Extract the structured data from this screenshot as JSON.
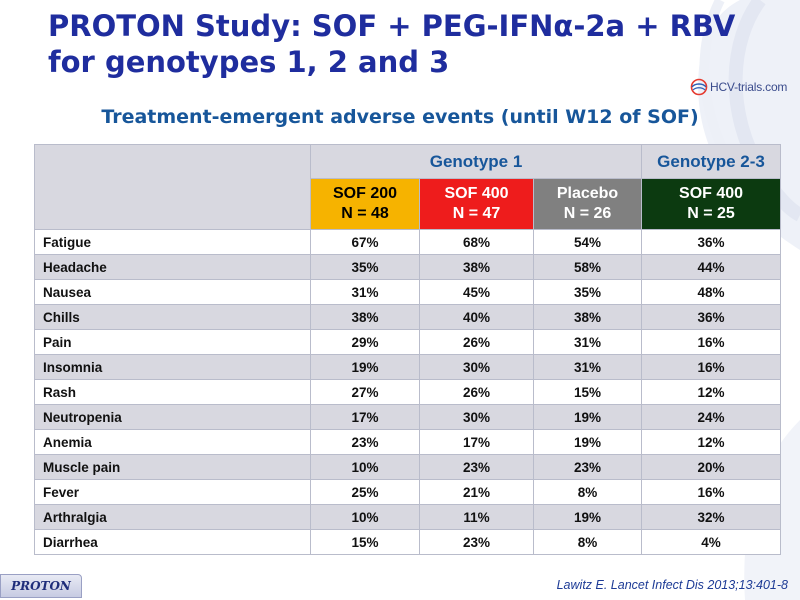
{
  "header": {
    "title_line1": "PROTON Study: SOF + PEG-IFNα-2a + RBV",
    "title_line2": "for genotypes 1, 2 and 3",
    "logo_text": "HCV-trials.com"
  },
  "subtitle": "Treatment-emergent adverse events (until W12 of SOF)",
  "table": {
    "groups": [
      {
        "label": "Genotype 1"
      },
      {
        "label": "Genotype 2-3"
      }
    ],
    "arms": [
      {
        "name": "SOF 200",
        "n": "N = 48",
        "color": "#f6b300"
      },
      {
        "name": "SOF 400",
        "n": "N = 47",
        "color": "#ee1c1c"
      },
      {
        "name": "Placebo",
        "n": "N = 26",
        "color": "#808080"
      },
      {
        "name": "SOF 400",
        "n": "N = 25",
        "color": "#0c3a10"
      }
    ],
    "rows": [
      {
        "event": "Fatigue",
        "values": [
          "67%",
          "68%",
          "54%",
          "36%"
        ]
      },
      {
        "event": "Headache",
        "values": [
          "35%",
          "38%",
          "58%",
          "44%"
        ]
      },
      {
        "event": "Nausea",
        "values": [
          "31%",
          "45%",
          "35%",
          "48%"
        ]
      },
      {
        "event": "Chills",
        "values": [
          "38%",
          "40%",
          "38%",
          "36%"
        ]
      },
      {
        "event": "Pain",
        "values": [
          "29%",
          "26%",
          "31%",
          "16%"
        ]
      },
      {
        "event": "Insomnia",
        "values": [
          "19%",
          "30%",
          "31%",
          "16%"
        ]
      },
      {
        "event": "Rash",
        "values": [
          "27%",
          "26%",
          "15%",
          "12%"
        ]
      },
      {
        "event": "Neutropenia",
        "values": [
          "17%",
          "30%",
          "19%",
          "24%"
        ]
      },
      {
        "event": "Anemia",
        "values": [
          "23%",
          "17%",
          "19%",
          "12%"
        ]
      },
      {
        "event": "Muscle pain",
        "values": [
          "10%",
          "23%",
          "23%",
          "20%"
        ]
      },
      {
        "event": "Fever",
        "values": [
          "25%",
          "21%",
          "8%",
          "16%"
        ]
      },
      {
        "event": "Arthralgia",
        "values": [
          "10%",
          "11%",
          "19%",
          "32%"
        ]
      },
      {
        "event": "Diarrhea",
        "values": [
          "15%",
          "23%",
          "8%",
          "4%"
        ]
      }
    ]
  },
  "footer": {
    "tab_label": "PROTON",
    "citation": "Lawitz  E. Lancet Infect Dis 2013;13:401-8"
  }
}
